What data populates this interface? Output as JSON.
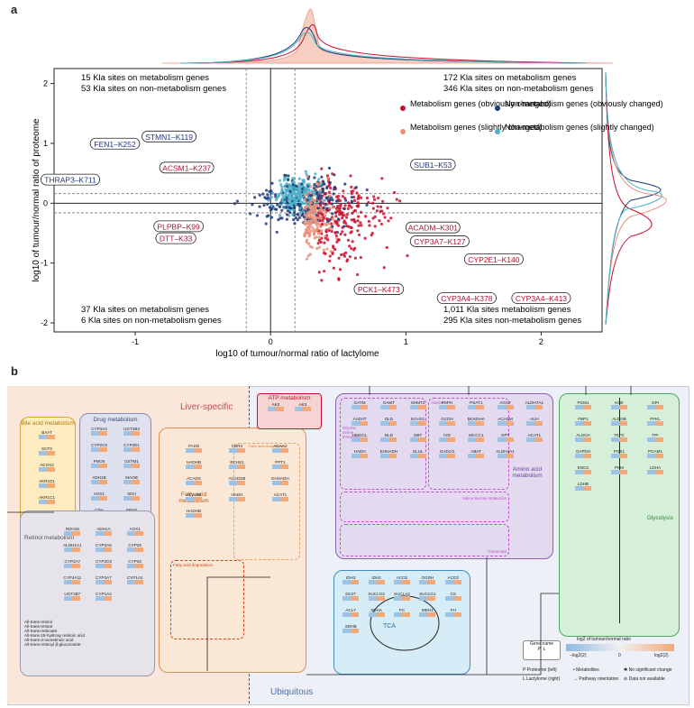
{
  "panel_a": {
    "letter": "a",
    "xlabel": "log10 of tumour/normal ratio of lactylome",
    "ylabel": "log10 of tumour/normal ratio of proteome",
    "quadrant_text": {
      "top_left": [
        "15 Kla sites on metabolism genes",
        "53 Kla sites on non-metabolism genes"
      ],
      "top_right": [
        "172 Kla sites on metabolism genes",
        "346 Kla sites on non-metabolism genes"
      ],
      "bottom_left": [
        "37 Kla sites on metabolism genes",
        "6 Kla sites on non-metabolism genes"
      ],
      "bottom_right": [
        "1,011 Kla sites metabolism genes",
        "295 Kla sites non-metabolism genes"
      ]
    },
    "legend": [
      {
        "label": "Metabolism genes (obviously changed)",
        "color": "#c8102e"
      },
      {
        "label": "Non-metabolism genes (obviously changed)",
        "color": "#1f3a7a"
      },
      {
        "label": "Metabolism genes (slightly changed)",
        "color": "#e8907a"
      },
      {
        "label": "Non-metabolism genes (slightly changed)",
        "color": "#4bb3c8"
      }
    ],
    "labels": [
      {
        "text": "STMN1–K119",
        "x": -0.75,
        "y": 1.1,
        "type": "non"
      },
      {
        "text": "FEN1–K252",
        "x": -1.15,
        "y": 0.98,
        "type": "non"
      },
      {
        "text": "ACSM1–K237",
        "x": -0.62,
        "y": 0.58,
        "type": "met"
      },
      {
        "text": "THRAP3–K711",
        "x": -1.48,
        "y": 0.38,
        "type": "non"
      },
      {
        "text": "SUB1–K53",
        "x": 1.2,
        "y": 0.63,
        "type": "non"
      },
      {
        "text": "PLPBP–K99",
        "x": -0.68,
        "y": -0.4,
        "type": "met"
      },
      {
        "text": "DTT–K33",
        "x": -0.7,
        "y": -0.6,
        "type": "met"
      },
      {
        "text": "ACADM–K301",
        "x": 1.2,
        "y": -0.42,
        "type": "met"
      },
      {
        "text": "CYP3A7–K127",
        "x": 1.25,
        "y": -0.65,
        "type": "met"
      },
      {
        "text": "CYP2E1–K140",
        "x": 1.65,
        "y": -0.95,
        "type": "met"
      },
      {
        "text": "PCK1–K473",
        "x": 0.8,
        "y": -1.45,
        "type": "met"
      },
      {
        "text": "CYP3A4–K378",
        "x": 1.45,
        "y": -1.6,
        "type": "met"
      },
      {
        "text": "CYP3A4–K413",
        "x": 2.0,
        "y": -1.6,
        "type": "met"
      }
    ]
  },
  "chart_data": {
    "type": "scatter",
    "title": "",
    "xlabel": "log10 of tumour/normal ratio of lactylome",
    "ylabel": "log10 of tumour/normal ratio of proteome",
    "xlim": [
      -1.6,
      2.45
    ],
    "ylim": [
      -2.15,
      2.25
    ],
    "xticks": [
      -1,
      0,
      1,
      2
    ],
    "yticks": [
      -2,
      -1,
      0,
      1,
      2
    ],
    "threshold_x": [
      -0.18,
      0.18
    ],
    "threshold_y": [
      -0.16,
      0.16
    ]
  },
  "panel_b": {
    "letter": "b",
    "region_left": "Liver-specific",
    "region_bottom": "Ubiquitous",
    "modules": {
      "bile": "Bile acid metabolism",
      "drug": "Drug metabolism",
      "retinol": "Retinol metabolism",
      "fatty": "Fatty acid metabolism",
      "fa_biosynth": "Fatty acid biosynthesis",
      "fa_elong": "Fatty acid elongation",
      "fa_degrad": "Fatty acid degradation",
      "atp": "ATP metabolism",
      "amino": "Amino acid metabolism",
      "gly_ser_thr": "Glycine serine threonine",
      "alanine": "Alanine",
      "valine": "Valine leucine isoleucine",
      "glutamate": "Glutamate",
      "tca": "TCA",
      "glycolysis": "Glycolysis"
    },
    "bile_genes": [
      "BAAT",
      "SCP2",
      "ACOX2",
      "AKR1D1",
      "AKR1C1",
      "CYP27A1"
    ],
    "drug_genes": [
      "CYP3A4",
      "UGT2B4",
      "CYP2C9",
      "CYP2E1",
      "FMO5",
      "GSTM1",
      "ADH1B",
      "MAOB",
      "AOX1",
      "XDH",
      "CDA",
      "DPYS",
      "UPB1"
    ],
    "retinol_genes": [
      "RDH16",
      "ADH1A",
      "AOX1",
      "ALDH1A1",
      "CYP2A6",
      "CYP26",
      "CYP2A7",
      "CYP2C8",
      "CYP26",
      "CYP4A11",
      "CYP3A7",
      "CYP1A2",
      "UGT2B7",
      "CYP1A2"
    ],
    "retinol_metabolites": [
      "All-trans-retinol",
      "All-trans-retinal",
      "All-trans-retinoate",
      "All-trans-18-hydroxy retinoic acid",
      "All-trans-4-oxoretinoic acid",
      "All-trans-retinoyl β-glucuronide"
    ],
    "atp_genes": [
      "AK2",
      "AK3"
    ],
    "atp_metabolites": [
      "AMP",
      "ATP",
      "ADP"
    ],
    "fatty_genes": [
      "FASN",
      "CBR4",
      "ACAA2",
      "HADHB",
      "ECHS1",
      "PPT1",
      "ACADS",
      "ACADSB",
      "EHHADH",
      "ACADM",
      "HADH",
      "ACAT1",
      "HADHB"
    ],
    "fatty_metabolites": [
      "Acetyl-CoA",
      "Hexadecanoyl-CoA",
      "Hexadecanoate (Fatty acid)",
      "Acetyl-CoA"
    ],
    "amino_genes": [
      "GATM",
      "GAMT",
      "SHMT2",
      "PSPH",
      "PSAT1",
      "AGXT",
      "ALDH7A1",
      "AADAT",
      "DLD",
      "ECHS1",
      "GCDH",
      "BCKDHA",
      "ACADM",
      "AUH",
      "HMGCL",
      "DLD",
      "DBT",
      "IVD",
      "MCCC1",
      "GPT",
      "ACAT1",
      "HADH",
      "EHHADH",
      "GLUL",
      "GAD1/2",
      "ABAT",
      "ALDH4A1"
    ],
    "amino_metabolites": [
      "Creatine",
      "Glycine",
      "Serine",
      "Phosphoserine",
      "3P-hydroxypyruvate",
      "L-Alanine",
      "L-2-Aminoadipate",
      "2-Oxoadipate",
      "Glutaryl-CoA",
      "(S)-3-Hydroxybutanoyl-CoA",
      "L-glutamine",
      "Glutamate",
      "4-Aminobutanoate",
      "Succinate semialdehyde"
    ],
    "tca_genes": [
      "IDH3",
      "IDH2",
      "ACO2",
      "OGDH",
      "ACO2",
      "DLST",
      "SUCLG2",
      "SUCLA2",
      "SUCLG1",
      "CS",
      "ACLY",
      "SDHA",
      "PC",
      "MDH1",
      "FH",
      "SDHB"
    ],
    "tca_metabolites": [
      "Isocitrate",
      "Oxalosuccinate",
      "2-Oxo-glutarate",
      "Cis-Aconitate",
      "Succinyl-CoA",
      "Citrate",
      "Succinate",
      "Oxaloacetate",
      "S-Malate",
      "Fumarate",
      "Acetyl-CoA"
    ],
    "glycolysis_genes": [
      "PGM1",
      "KHK",
      "GPI",
      "FBP1",
      "ALDOB",
      "PFKL",
      "ALDOA",
      "TKFC",
      "TPI",
      "GAPDH",
      "PGK1",
      "PGAM1",
      "ENO1",
      "PKM",
      "LDHA",
      "LDHB"
    ],
    "glycolysis_metabolites": [
      "α-D-Glucose-1P",
      "α-D-Glucose-6P",
      "β-D-Fructose-6P",
      "β-D-Fructose-1,6P",
      "Glycerone-P",
      "Glyceraldehyde-3P",
      "Glycerate-1,3P",
      "Glycerate-3P",
      "Glycerate-2P",
      "Phosphoenolpyruvate",
      "Pyruvate",
      "L-Lactate",
      "D-Fructose",
      "D-Fructose-1P",
      "D-Glyceraldehyde"
    ],
    "legend": {
      "gene_name": "Gene name",
      "p": "P",
      "l": "L",
      "scale_title": "log2 of tumour/normal ratio",
      "scale_left": "−log2(2)",
      "scale_mid": "0",
      "scale_right": "log2(2)",
      "p_desc": "Proteome (left)",
      "l_desc": "Lactylome (right)",
      "metabolites": "Metabolites",
      "pathway": "Pathway orientation",
      "nochange": "No significant change",
      "na": "Data not available"
    }
  }
}
